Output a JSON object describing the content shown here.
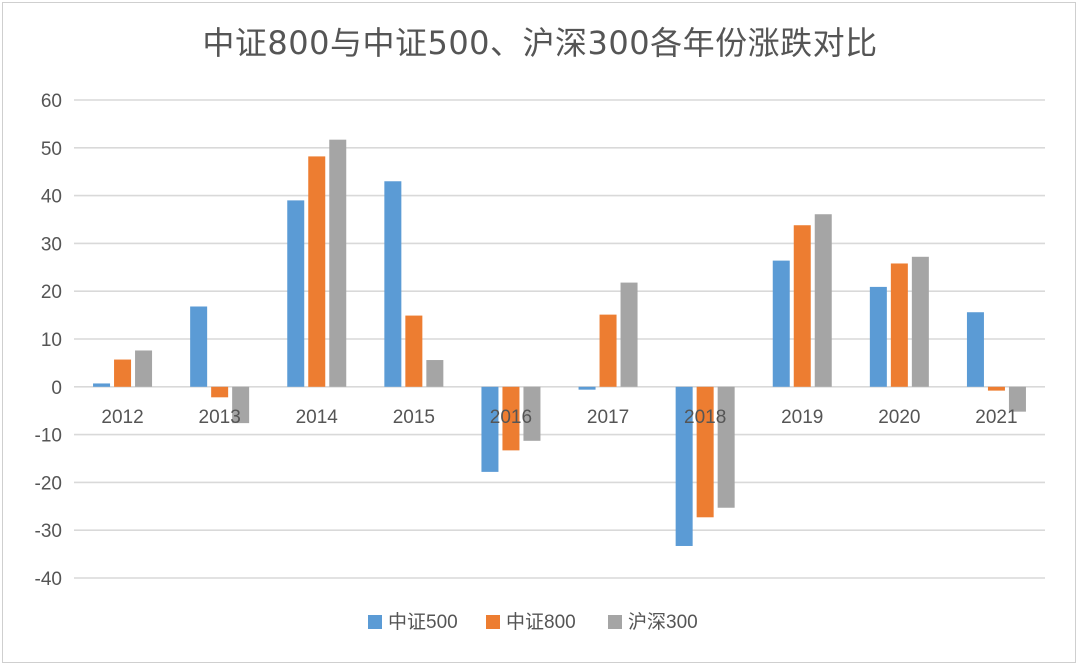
{
  "chart_data": {
    "type": "bar",
    "title": "中证800与中证500、沪深300各年份涨跌对比",
    "xlabel": "",
    "ylabel": "",
    "categories": [
      "2012",
      "2013",
      "2014",
      "2015",
      "2016",
      "2017",
      "2018",
      "2019",
      "2020",
      "2021"
    ],
    "series": [
      {
        "name": "中证500",
        "color": "#5b9bd5",
        "values": [
          0.7,
          16.8,
          39,
          43,
          -17.8,
          -0.6,
          -33.3,
          26.4,
          20.9,
          15.6
        ]
      },
      {
        "name": "中证800",
        "color": "#ed7d31",
        "values": [
          5.7,
          -2.2,
          48.2,
          14.9,
          -13.3,
          15.1,
          -27.3,
          33.8,
          25.8,
          -0.8
        ]
      },
      {
        "name": "沪深300",
        "color": "#a5a5a5",
        "values": [
          7.6,
          -7.6,
          51.7,
          5.6,
          -11.3,
          21.8,
          -25.3,
          36.1,
          27.2,
          -5.2
        ]
      }
    ],
    "ylim": [
      -40,
      60
    ],
    "yticks": [
      60,
      50,
      40,
      30,
      20,
      10,
      0,
      -10,
      -20,
      -30,
      -40
    ],
    "grid": true,
    "legend": "bottom"
  }
}
